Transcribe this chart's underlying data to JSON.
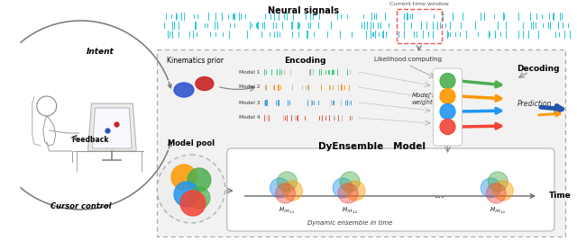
{
  "neural_signals_label": "Neural signals",
  "current_time_window_label": "Current time window",
  "intent_label": "Intent",
  "feedback_label": "Feedback",
  "cursor_control_label": "Cursor control",
  "kinematics_prior_label": "Kinematics prior",
  "encoding_label": "Encoding",
  "likelihood_computing_label": "Likelihood computing",
  "model_pool_label": "Model pool",
  "dyensemble_label": "DyEnsemble   Model",
  "model_weights_label": "Model's\nweights",
  "decoding_label": "Decoding",
  "prediction_label": "Prediction",
  "dynamic_ensemble_label": "Dynamic ensemble in time",
  "time_label": "Time",
  "model_labels": [
    "Model 1",
    "Model 2",
    "Model 3",
    "Model 4"
  ],
  "colors": {
    "green": "#4CAF50",
    "blue": "#2196F3",
    "orange": "#FF9800",
    "red": "#F44336",
    "teal": "#26C6DA",
    "red_dashed": "#EF5350",
    "gray": "#888888",
    "light_gray": "#DDDDDD",
    "dark_gray": "#555555",
    "bg_inner": "#F0F0F0"
  },
  "spike_seed": 42,
  "model_spike_seeds": [
    10,
    11,
    12,
    13
  ]
}
